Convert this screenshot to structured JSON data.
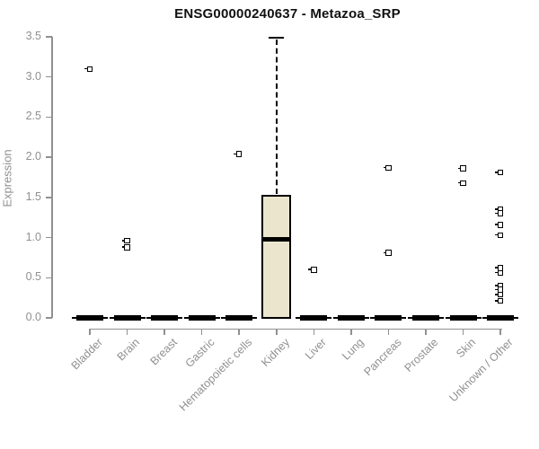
{
  "chart_data": {
    "type": "boxplot",
    "title": "ENSG00000240637 - Metazoa_SRP",
    "ylabel": "Expression",
    "xlabel": "",
    "ylim": [
      0,
      3.5
    ],
    "ytick_labels": [
      "0.0",
      "0.5",
      "1.0",
      "1.5",
      "2.0",
      "2.5",
      "3.0",
      "3.5"
    ],
    "grid": false,
    "legend": "none",
    "box_fill_color": "#EBE5CD",
    "axis_color": "#909090",
    "categories": [
      "Bladder",
      "Brain",
      "Breast",
      "Gastric",
      "Hematopoietic cells",
      "Kidney",
      "Liver",
      "Lung",
      "Pancreas",
      "Prostate",
      "Skin",
      "Unknown / Other"
    ],
    "boxes": [
      {
        "category": "Bladder",
        "whisker_low": 0,
        "q1": 0,
        "median": 0,
        "q3": 0,
        "whisker_high": 0,
        "outliers": [
          3.1
        ]
      },
      {
        "category": "Brain",
        "whisker_low": 0,
        "q1": 0,
        "median": 0,
        "q3": 0,
        "whisker_high": 0,
        "outliers": [
          0.96,
          0.88
        ]
      },
      {
        "category": "Breast",
        "whisker_low": 0,
        "q1": 0,
        "median": 0,
        "q3": 0,
        "whisker_high": 0,
        "outliers": []
      },
      {
        "category": "Gastric",
        "whisker_low": 0,
        "q1": 0,
        "median": 0,
        "q3": 0,
        "whisker_high": 0,
        "outliers": []
      },
      {
        "category": "Hematopoietic cells",
        "whisker_low": 0,
        "q1": 0,
        "median": 0,
        "q3": 0,
        "whisker_high": 0,
        "outliers": [
          2.04
        ]
      },
      {
        "category": "Kidney",
        "whisker_low": 0,
        "q1": 0,
        "median": 0.98,
        "q3": 1.53,
        "whisker_high": 3.49,
        "outliers": []
      },
      {
        "category": "Liver",
        "whisker_low": 0,
        "q1": 0,
        "median": 0,
        "q3": 0,
        "whisker_high": 0,
        "outliers": [
          0.6
        ]
      },
      {
        "category": "Lung",
        "whisker_low": 0,
        "q1": 0,
        "median": 0,
        "q3": 0,
        "whisker_high": 0,
        "outliers": []
      },
      {
        "category": "Pancreas",
        "whisker_low": 0,
        "q1": 0,
        "median": 0,
        "q3": 0,
        "whisker_high": 0,
        "outliers": [
          1.87,
          0.81
        ]
      },
      {
        "category": "Prostate",
        "whisker_low": 0,
        "q1": 0,
        "median": 0,
        "q3": 0,
        "whisker_high": 0,
        "outliers": []
      },
      {
        "category": "Skin",
        "whisker_low": 0,
        "q1": 0,
        "median": 0,
        "q3": 0,
        "whisker_high": 0,
        "outliers": [
          1.86,
          1.68
        ]
      },
      {
        "category": "Unknown / Other",
        "whisker_low": 0,
        "q1": 0,
        "median": 0,
        "q3": 0,
        "whisker_high": 0,
        "outliers": [
          1.81,
          1.35,
          1.3,
          1.16,
          1.03,
          0.62,
          0.56,
          0.4,
          0.35,
          0.29,
          0.21
        ]
      }
    ]
  }
}
